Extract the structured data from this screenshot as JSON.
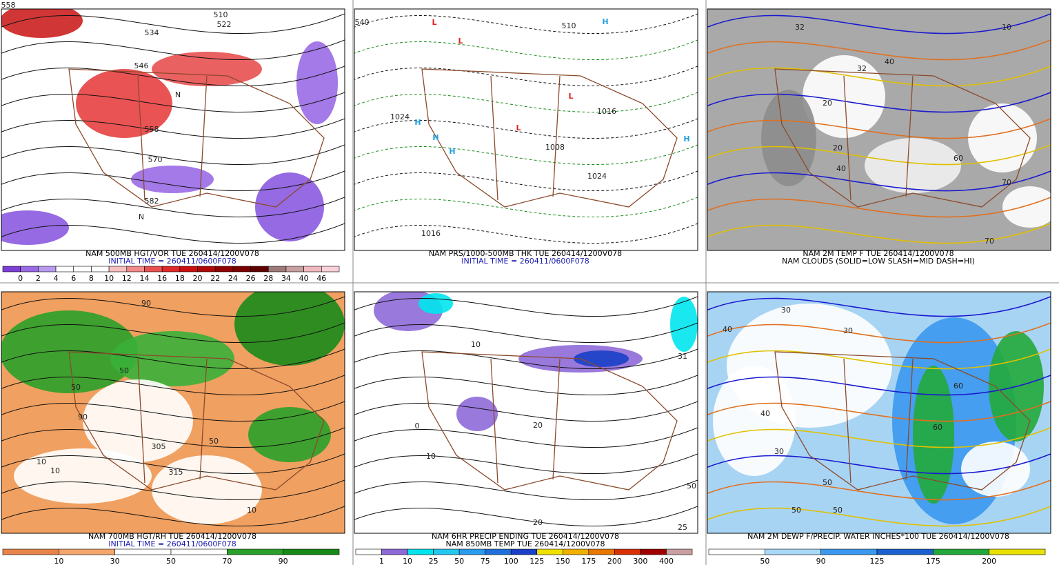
{
  "panels": [
    {
      "caption": [
        "NAM 500MB HGT/VOR TUE 260414/1200V078",
        "INITIAL TIME = 260411/0600F078"
      ],
      "map_labels": [
        "558",
        "534",
        "510",
        "522",
        "546",
        "558",
        "570",
        "582",
        "N",
        "N"
      ],
      "colorbar": {
        "labels": [
          "0",
          "2",
          "4",
          "6",
          "8",
          "10",
          "12",
          "14",
          "16",
          "18",
          "20",
          "22",
          "24",
          "26",
          "28",
          "34",
          "40",
          "46"
        ],
        "colors": [
          "#7b3fd6",
          "#9a6ae6",
          "#b79af0",
          "#ffffff",
          "#ffffff",
          "#ffffff",
          "#f7c0c0",
          "#f28a8a",
          "#ea5050",
          "#e02828",
          "#cc1010",
          "#b00808",
          "#900000",
          "#7a0000",
          "#600000",
          "#a07878",
          "#c8a0a0",
          "#f0b8c0",
          "#f8d0d8"
        ]
      }
    },
    {
      "caption": [
        "NAM PRS/1000-500MB THK TUE 260414/1200V078",
        "INITIAL TIME = 260411/0600F078"
      ],
      "map_labels": [
        "L",
        "L",
        "L",
        "L",
        "H",
        "H",
        "H",
        "H",
        "H",
        "1024",
        "1008",
        "1016",
        "1024",
        "1016",
        "510",
        "540"
      ]
    },
    {
      "caption": [
        "NAM 2M TEMP F TUE 260414/1200V078",
        "NAM CLOUDS (SOLID=LOW SLASH=MID DASH=HI)"
      ],
      "map_labels": [
        "32",
        "32",
        "20",
        "20",
        "40",
        "40",
        "60",
        "70",
        "70",
        "10"
      ]
    },
    {
      "caption": [
        "NAM 700MB HGT/RH TUE 260414/1200V078",
        "INITIAL TIME = 260411/0600F078"
      ],
      "map_labels": [
        "50",
        "90",
        "10",
        "10",
        "50",
        "315",
        "305",
        "90",
        "50",
        "10"
      ],
      "colorbar": {
        "labels": [
          "10",
          "30",
          "50",
          "70",
          "90"
        ],
        "colors": [
          "#e8834a",
          "#f4a66c",
          "#ffffff",
          "#ffffff",
          "#2aa02a",
          "#178a17"
        ]
      }
    },
    {
      "caption": [
        "NAM 6HR PRECIP ENDING TUE 260414/1200V078",
        "NAM 850MB TEMP TUE 260414/1200V078"
      ],
      "map_labels": [
        "20",
        "10",
        "0",
        "20",
        "10",
        "25",
        "31",
        "50"
      ],
      "colorbar": {
        "labels": [
          "1",
          "10",
          "25",
          "50",
          "75",
          "100",
          "125",
          "150",
          "175",
          "200",
          "300",
          "400"
        ],
        "colors": [
          "#ffffff",
          "#8e6ad8",
          "#00e5ee",
          "#22c8f0",
          "#2a9cee",
          "#1e6fdc",
          "#1a40c8",
          "#f0e000",
          "#f0b000",
          "#e87800",
          "#d83000",
          "#a00000",
          "#c8a0a0"
        ]
      }
    },
    {
      "caption": [
        "NAM 2M DEWP F/PRECIP. WATER INCHES*100 TUE 260414/1200V078"
      ],
      "map_labels": [
        "30",
        "30",
        "40",
        "50",
        "60",
        "30",
        "50",
        "60",
        "40",
        "50"
      ],
      "colorbar": {
        "labels": [
          "50",
          "90",
          "125",
          "175",
          "200"
        ],
        "colors": [
          "#ffffff",
          "#a8d8f8",
          "#3a98ee",
          "#1a60d0",
          "#22a83a",
          "#e8e000"
        ]
      }
    }
  ]
}
